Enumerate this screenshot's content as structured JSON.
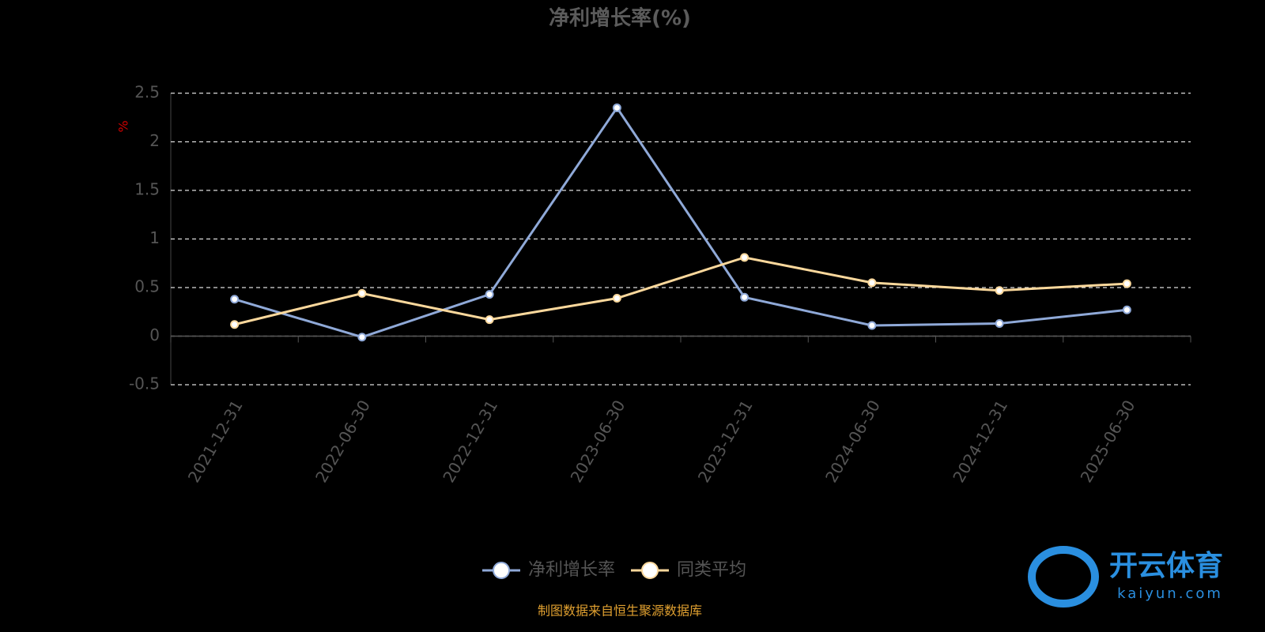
{
  "chart_data": {
    "type": "line",
    "title": "净利增长率(%)",
    "y_axis_label": "%",
    "categories": [
      "2021-12-31",
      "2022-06-30",
      "2022-12-31",
      "2023-06-30",
      "2023-12-31",
      "2024-06-30",
      "2024-12-31",
      "2025-06-30"
    ],
    "series": [
      {
        "name": "净利增长率",
        "color": "#8fa9d8",
        "values": [
          0.38,
          -0.01,
          0.43,
          2.35,
          0.4,
          0.11,
          0.13,
          0.27
        ]
      },
      {
        "name": "同类平均",
        "color": "#fbd89c",
        "values": [
          0.12,
          0.44,
          0.17,
          0.39,
          0.81,
          0.55,
          0.47,
          0.54
        ]
      }
    ],
    "ylim": [
      -0.5,
      2.5
    ],
    "yticks": [
      -0.5,
      0,
      0.5,
      1,
      1.5,
      2,
      2.5
    ],
    "grid": true,
    "legend": "bottom",
    "source": "制图数据来自恒生聚源数据库",
    "watermark": {
      "brand": "开云体育",
      "url": "kaiyun.com"
    }
  }
}
